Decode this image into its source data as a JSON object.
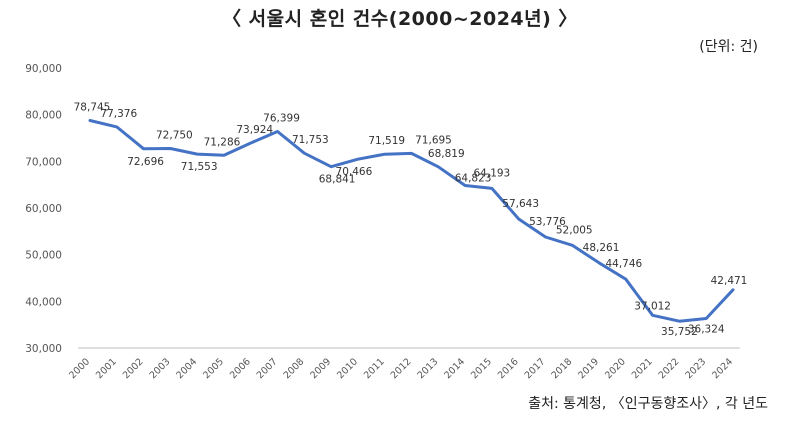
{
  "chart_data": {
    "type": "line",
    "title": "〈 서울시 혼인 건수(2000~2024년) 〉",
    "unit": "(단위: 건)",
    "source": "출처: 통계청, 〈인구동향조사〉, 각 년도",
    "x": [
      "2000",
      "2001",
      "2002",
      "2003",
      "2004",
      "2005",
      "2006",
      "2007",
      "2008",
      "2009",
      "2010",
      "2011",
      "2012",
      "2013",
      "2014",
      "2015",
      "2016",
      "2017",
      "2018",
      "2019",
      "2020",
      "2021",
      "2022",
      "2023",
      "2024"
    ],
    "series": [
      {
        "values": [
          78745,
          77376,
          72696,
          72750,
          71553,
          71286,
          73924,
          76399,
          71753,
          68841,
          70466,
          71519,
          71695,
          68819,
          64823,
          64193,
          57643,
          53776,
          52005,
          48261,
          44746,
          37012,
          35752,
          36324,
          42471
        ],
        "value_labels": [
          "78,745",
          "77,376",
          "72,696",
          "72,750",
          "71,553",
          "71,286",
          "73,924",
          "76,399",
          "71,753",
          "68,841",
          "70,466",
          "71,519",
          "71,695",
          "68,819",
          "64,823",
          "64,193",
          "57,643",
          "53,776",
          "52,005",
          "48,261",
          "44,746",
          "37,012",
          "35,752",
          "36,324",
          "42,471"
        ]
      }
    ],
    "yticks": [
      30000,
      40000,
      50000,
      60000,
      70000,
      80000,
      90000
    ],
    "ytick_labels": [
      "30,000",
      "40,000",
      "50,000",
      "60,000",
      "70,000",
      "80,000",
      "90,000"
    ],
    "ylim": [
      30000,
      90000
    ],
    "grid": false,
    "line_color": "#4472c4"
  }
}
